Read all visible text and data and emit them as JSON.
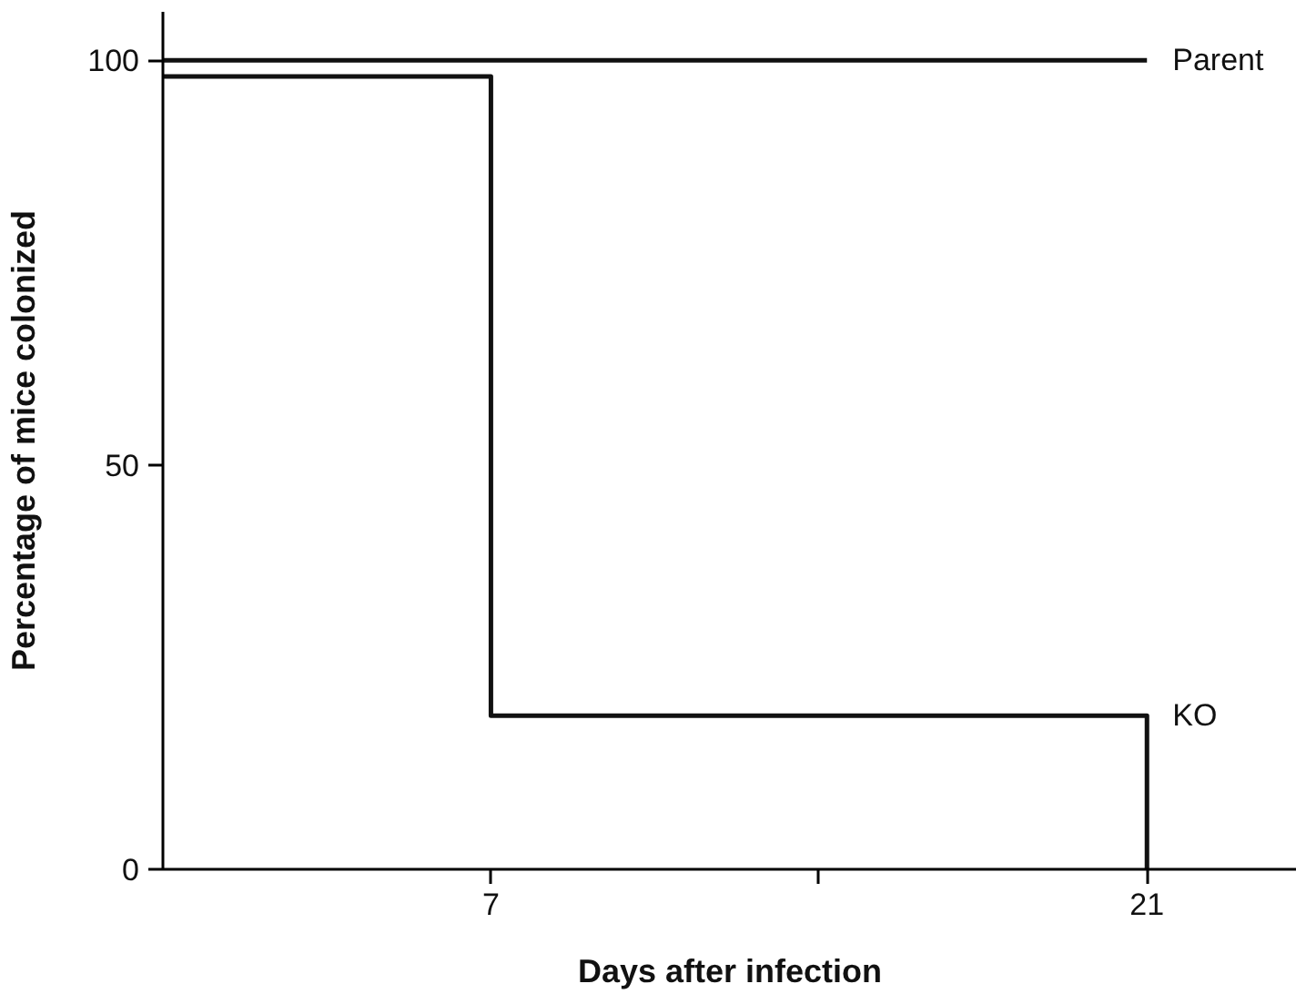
{
  "chart_data": {
    "type": "step",
    "xlabel": "Days after infection",
    "ylabel": "Percentage of mice colonized",
    "xlim": [
      0,
      24.2
    ],
    "ylim": [
      0,
      106
    ],
    "xticks": [
      7,
      {
        "value": 14,
        "label": null
      },
      21
    ],
    "yticks": [
      0,
      50,
      100
    ],
    "grid": false,
    "line_style": "solid",
    "marker": "none",
    "series": [
      {
        "name": "Parent",
        "color": "#111111",
        "x": [
          0,
          21
        ],
        "values": [
          100,
          100
        ]
      },
      {
        "name": "KO",
        "color": "#111111",
        "x": [
          0,
          7,
          21
        ],
        "values": [
          98,
          19,
          0
        ]
      }
    ]
  }
}
